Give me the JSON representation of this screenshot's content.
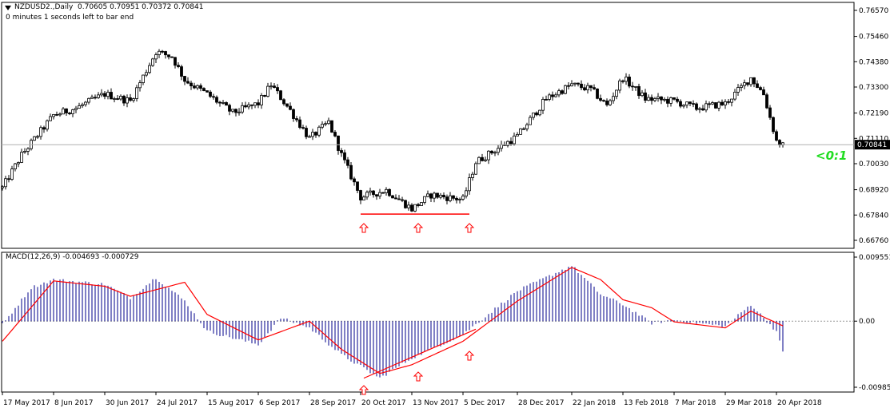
{
  "header": {
    "symbol": "NZDUSD2.,Daily",
    "ohlc": "0.70605 0.70951 0.70372 0.70841",
    "countdown": "0 minutes 1 seconds left to bar end"
  },
  "indicator_label": "MACD(12,26,9) -0.004693 -0.000729",
  "ratio_label": "<0:1",
  "icons": {
    "menu": "triangle-down-icon",
    "arrow": "up-arrow-icon"
  },
  "colors": {
    "candle_body": "#000000",
    "support_line": "#ff0000",
    "arrow": "#ff0000",
    "macd_histogram": "#00008b",
    "signal_line": "#ff0000",
    "price_line": "#b0b0b0",
    "ratio_text": "#22dd22",
    "price_tag_bg": "#000000",
    "price_tag_text": "#ffffff"
  },
  "chart_data": [
    {
      "type": "candlestick",
      "title": "NZDUSD2.,Daily",
      "current_price": "0.70841",
      "y_ticks": [
        "0.76570",
        "0.75460",
        "0.74380",
        "0.73300",
        "0.72190",
        "0.71110",
        "0.70030",
        "0.68920",
        "0.67840",
        "0.66760"
      ],
      "ylim": [
        0.6676,
        0.7657
      ],
      "x_ticks": [
        "17 May 2017",
        "8 Jun 2017",
        "30 Jun 2017",
        "24 Jul 2017",
        "15 Aug 2017",
        "6 Sep 2017",
        "28 Sep 2017",
        "20 Oct 2017",
        "13 Nov 2017",
        "5 Dec 2017",
        "28 Dec 2017",
        "22 Jan 2018",
        "13 Feb 2018",
        "7 Mar 2018",
        "29 Mar 2018",
        "20 Apr 2018"
      ],
      "close_path": [
        [
          "17 May 2017",
          0.69
        ],
        [
          "25 May 2017",
          0.704
        ],
        [
          "8 Jun 2017",
          0.721
        ],
        [
          "19 Jun 2017",
          0.724
        ],
        [
          "30 Jun 2017",
          0.73
        ],
        [
          "12 Jul 2017",
          0.727
        ],
        [
          "24 Jul 2017",
          0.748
        ],
        [
          "31 Jul 2017",
          0.746
        ],
        [
          "4 Aug 2017",
          0.736
        ],
        [
          "15 Aug 2017",
          0.73
        ],
        [
          "25 Aug 2017",
          0.722
        ],
        [
          "6 Sep 2017",
          0.726
        ],
        [
          "12 Sep 2017",
          0.734
        ],
        [
          "20 Sep 2017",
          0.723
        ],
        [
          "28 Sep 2017",
          0.711
        ],
        [
          "6 Oct 2017",
          0.718
        ],
        [
          "12 Oct 2017",
          0.704
        ],
        [
          "20 Oct 2017",
          0.686
        ],
        [
          "1 Nov 2017",
          0.689
        ],
        [
          "13 Nov 2017",
          0.681
        ],
        [
          "21 Nov 2017",
          0.687
        ],
        [
          "5 Dec 2017",
          0.685
        ],
        [
          "11 Dec 2017",
          0.701
        ],
        [
          "28 Dec 2017",
          0.712
        ],
        [
          "10 Jan 2018",
          0.728
        ],
        [
          "22 Jan 2018",
          0.734
        ],
        [
          "30 Jan 2018",
          0.732
        ],
        [
          "6 Feb 2018",
          0.725
        ],
        [
          "13 Feb 2018",
          0.737
        ],
        [
          "22 Feb 2018",
          0.728
        ],
        [
          "7 Mar 2018",
          0.727
        ],
        [
          "16 Mar 2018",
          0.724
        ],
        [
          "29 Mar 2018",
          0.726
        ],
        [
          "10 Apr 2018",
          0.737
        ],
        [
          "16 Apr 2018",
          0.73
        ],
        [
          "20 Apr 2018",
          0.71
        ],
        [
          "24 Apr 2018",
          0.708
        ]
      ],
      "annotations": [
        {
          "type": "horizontal_line",
          "value": 0.6788,
          "from": "20 Oct 2017",
          "to": "7 Dec 2017"
        },
        {
          "type": "up_arrow",
          "at": "23 Oct 2017"
        },
        {
          "type": "up_arrow",
          "at": "15 Nov 2017"
        },
        {
          "type": "up_arrow",
          "at": "7 Dec 2017"
        }
      ]
    },
    {
      "type": "bar",
      "title": "MACD(12,26,9) -0.004693 -0.000729",
      "y_ticks": [
        "0.009551",
        "0.00",
        "-0.009854"
      ],
      "ylim": [
        -0.009854,
        0.009551
      ],
      "macd_path": [
        [
          "17 May 2017",
          -0.0005
        ],
        [
          "30 May 2017",
          0.005
        ],
        [
          "8 Jun 2017",
          0.0062
        ],
        [
          "30 Jun 2017",
          0.0055
        ],
        [
          "12 Jul 2017",
          0.0035
        ],
        [
          "24 Jul 2017",
          0.0065
        ],
        [
          "4 Aug 2017",
          0.003
        ],
        [
          "15 Aug 2017",
          -0.0015
        ],
        [
          "6 Sep 2017",
          -0.0035
        ],
        [
          "15 Sep 2017",
          0.0005
        ],
        [
          "28 Sep 2017",
          -0.001
        ],
        [
          "12 Oct 2017",
          -0.005
        ],
        [
          "28 Oct 2017",
          -0.0085
        ],
        [
          "13 Nov 2017",
          -0.0055
        ],
        [
          "5 Dec 2017",
          -0.002
        ],
        [
          "28 Dec 2017",
          0.0045
        ],
        [
          "22 Jan 2018",
          0.0083
        ],
        [
          "2 Feb 2018",
          0.004
        ],
        [
          "13 Feb 2018",
          0.0025
        ],
        [
          "26 Feb 2018",
          -0.0003
        ],
        [
          "7 Mar 2018",
          0.0002
        ],
        [
          "29 Mar 2018",
          -0.0008
        ],
        [
          "10 Apr 2018",
          0.0025
        ],
        [
          "20 Apr 2018",
          -0.0015
        ],
        [
          "24 Apr 2018",
          -0.0047
        ]
      ],
      "signal_path": [
        [
          "17 May 2017",
          -0.003
        ],
        [
          "8 Jun 2017",
          0.006
        ],
        [
          "30 Jun 2017",
          0.0052
        ],
        [
          "12 Jul 2017",
          0.0037
        ],
        [
          "4 Aug 2017",
          0.0058
        ],
        [
          "15 Aug 2017",
          0.001
        ],
        [
          "6 Sep 2017",
          -0.0028
        ],
        [
          "28 Sep 2017",
          0.0
        ],
        [
          "12 Oct 2017",
          -0.0042
        ],
        [
          "28 Oct 2017",
          -0.0078
        ],
        [
          "13 Nov 2017",
          -0.0065
        ],
        [
          "5 Dec 2017",
          -0.003
        ],
        [
          "28 Dec 2017",
          0.003
        ],
        [
          "22 Jan 2018",
          0.008
        ],
        [
          "2 Feb 2018",
          0.0062
        ],
        [
          "13 Feb 2018",
          0.0032
        ],
        [
          "26 Feb 2018",
          0.002
        ],
        [
          "7 Mar 2018",
          -0.0001
        ],
        [
          "29 Mar 2018",
          -0.001
        ],
        [
          "10 Apr 2018",
          0.0015
        ],
        [
          "24 Apr 2018",
          -0.0007
        ]
      ],
      "annotations": [
        {
          "type": "trend_line",
          "from": [
            "23 Oct 2017",
            -0.0085
          ],
          "to": [
            "11 Dec 2017",
            -0.0012
          ]
        },
        {
          "type": "up_arrow",
          "at": "23 Oct 2017"
        },
        {
          "type": "up_arrow",
          "at": "15 Nov 2017"
        },
        {
          "type": "up_arrow",
          "at": "7 Dec 2017"
        }
      ]
    }
  ]
}
